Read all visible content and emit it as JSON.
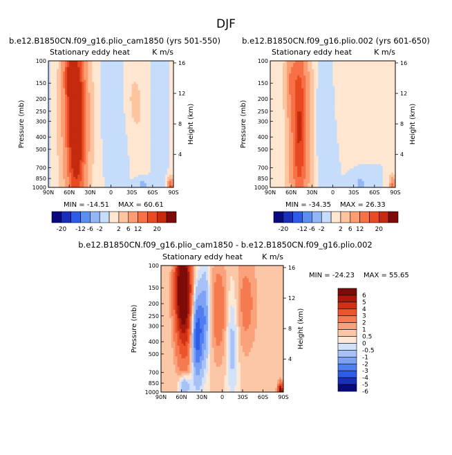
{
  "figure": {
    "title": "DJF"
  },
  "palettes": {
    "abs": [
      "#0a0a80",
      "#1a2fb8",
      "#2c5ce8",
      "#5a8ef0",
      "#93b7f5",
      "#c6dcfb",
      "#ffe6d1",
      "#fdc4a0",
      "#fb9d73",
      "#f77046",
      "#e84a22",
      "#c52a0e",
      "#7d0c08"
    ],
    "diff": [
      "#0a0a80",
      "#1a2fb8",
      "#2c5ce8",
      "#4f7ef0",
      "#7ea2f3",
      "#a8c2f7",
      "#d2e2fb",
      "#fde8d6",
      "#fbc7a6",
      "#f9a27c",
      "#f57b51",
      "#ec542b",
      "#cf3115",
      "#a9180c",
      "#7d0c08"
    ]
  },
  "axes": {
    "lat_ticks": [
      "90N",
      "60N",
      "30N",
      "0",
      "30S",
      "60S",
      "90S"
    ],
    "p_ticks": [
      "100",
      "150",
      "200",
      "250",
      "300",
      "400",
      "500",
      "700",
      "850",
      "1000"
    ],
    "h_ticks": [
      "4",
      "8",
      "12",
      "16"
    ],
    "left_label": "Pressure (mb)",
    "right_label": "Height (km)"
  },
  "chart_data": [
    {
      "type": "heatmap",
      "title": "b.e12.B1850CN.f09_g16.plio_cam1850 (yrs 501-550)",
      "subtitle_left": "Stationary eddy heat",
      "subtitle_right": "K m/s",
      "x_range": [
        "90N",
        "90S"
      ],
      "y_range_mb": [
        1000,
        100
      ],
      "min_label": "MIN = -14.51",
      "max_label": "MAX =  60.61",
      "min": -14.51,
      "max": 60.61,
      "colorbar_labels": [
        "-20",
        "-12",
        "-6",
        "-2",
        "2",
        "6",
        "12",
        "20"
      ]
    },
    {
      "type": "heatmap",
      "title": "b.e12.B1850CN.f09_g16.plio.002 (yrs 601-650)",
      "subtitle_left": "Stationary eddy heat",
      "subtitle_right": "K m/s",
      "x_range": [
        "90N",
        "90S"
      ],
      "y_range_mb": [
        1000,
        100
      ],
      "min_label": "MIN = -34.35",
      "max_label": "MAX =  26.33",
      "min": -34.35,
      "max": 26.33,
      "colorbar_labels": [
        "-20",
        "-12",
        "-6",
        "-2",
        "2",
        "6",
        "12",
        "20"
      ]
    },
    {
      "type": "heatmap",
      "title": "b.e12.B1850CN.f09_g16.plio_cam1850 - b.e12.B1850CN.f09_g16.plio.002",
      "subtitle_left": "Stationary eddy heat",
      "subtitle_right": "K m/s",
      "x_range": [
        "90N",
        "90S"
      ],
      "y_range_mb": [
        1000,
        100
      ],
      "min_label": "MIN = -24.23",
      "max_label": "MAX =  55.65",
      "min": -24.23,
      "max": 55.65,
      "colorbar_labels": [
        "6",
        "5",
        "4",
        "3",
        "2",
        "1",
        "0.5",
        "0",
        "-0.5",
        "-1",
        "-2",
        "-3",
        "-4",
        "-5",
        "-6"
      ]
    }
  ]
}
